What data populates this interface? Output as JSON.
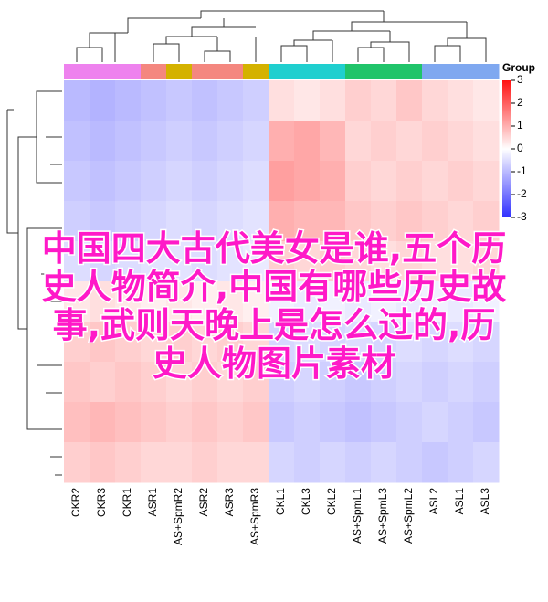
{
  "chart_data": {
    "type": "heatmap",
    "columns": [
      "CKR2",
      "CKR3",
      "CKR1",
      "ASR1",
      "AS+SpmR2",
      "ASR2",
      "ASR3",
      "AS+SpmR3",
      "CKL1",
      "CKL3",
      "CKL2",
      "AS+SpmL1",
      "AS+SpmL3",
      "AS+SpmL2",
      "ASL2",
      "ASL1",
      "ASL3"
    ],
    "column_group_colors": [
      "#ee82ee",
      "#ee82ee",
      "#ee82ee",
      "#f4877f",
      "#d4b200",
      "#f4877f",
      "#f4877f",
      "#d4b200",
      "#1fcfcf",
      "#1fcfcf",
      "#1fcfcf",
      "#20c46a",
      "#20c46a",
      "#20c46a",
      "#7fa8f0",
      "#7fa8f0",
      "#7fa8f0"
    ],
    "legend_title": "Group",
    "matrix": [
      [
        -1.0,
        -1.1,
        -1.0,
        -0.9,
        -0.8,
        -0.9,
        -0.8,
        -0.7,
        0.4,
        0.3,
        0.4,
        0.6,
        0.5,
        0.7,
        0.5,
        0.4,
        0.3
      ],
      [
        -0.9,
        -1.0,
        -0.9,
        -0.8,
        -0.7,
        -0.8,
        -0.7,
        -0.6,
        1.0,
        1.1,
        0.9,
        0.5,
        0.6,
        0.5,
        0.6,
        0.5,
        0.4
      ],
      [
        -0.8,
        -0.9,
        -0.8,
        -0.7,
        -0.6,
        -0.7,
        -0.6,
        -0.5,
        1.2,
        1.1,
        1.0,
        0.6,
        0.5,
        0.6,
        0.5,
        0.6,
        0.5
      ],
      [
        -0.7,
        -0.8,
        -0.7,
        -0.6,
        -0.5,
        -0.6,
        -0.5,
        -0.4,
        1.0,
        0.9,
        0.9,
        0.7,
        0.6,
        0.7,
        0.6,
        0.5,
        0.6
      ],
      [
        -0.5,
        -0.6,
        -0.5,
        -0.4,
        -0.4,
        -0.5,
        -0.4,
        -0.3,
        0.6,
        0.5,
        0.6,
        0.5,
        0.4,
        0.5,
        0.4,
        0.4,
        0.5
      ],
      [
        0.3,
        0.4,
        0.3,
        0.2,
        0.3,
        0.2,
        0.3,
        0.2,
        -0.2,
        -0.3,
        -0.2,
        -0.3,
        -0.2,
        -0.3,
        -0.2,
        -0.3,
        -0.2
      ],
      [
        0.6,
        0.7,
        0.6,
        0.5,
        0.6,
        0.5,
        0.6,
        0.5,
        -0.6,
        -0.5,
        -0.6,
        -0.5,
        -0.6,
        -0.5,
        -0.6,
        -0.5,
        -0.6
      ],
      [
        0.7,
        0.6,
        0.7,
        0.6,
        0.5,
        0.6,
        0.5,
        0.6,
        -0.7,
        -0.6,
        -0.7,
        -0.8,
        -0.7,
        -0.6,
        -0.7,
        -0.6,
        -0.7
      ],
      [
        0.8,
        0.9,
        0.8,
        0.7,
        0.6,
        0.7,
        0.6,
        0.7,
        -0.8,
        -0.7,
        -0.8,
        -0.9,
        -0.8,
        -0.7,
        -0.6,
        -0.7,
        -0.8
      ],
      [
        0.6,
        0.7,
        0.6,
        0.5,
        0.5,
        0.6,
        0.5,
        0.5,
        -0.6,
        -0.7,
        -0.6,
        -0.7,
        -0.6,
        -0.7,
        -0.8,
        -0.7,
        -0.6
      ]
    ],
    "colors": [
      "#3030ff",
      "#ffffff",
      "#ff1010"
    ],
    "clim": [
      -3,
      3
    ],
    "cticks": [
      3,
      2,
      1,
      0,
      -1,
      -2,
      -3
    ],
    "overlay_lines": [
      "中国四大古代美女是谁,五个历",
      "史人物简介,中国有哪些历史故",
      "事,武则天晚上是怎么过的,历",
      "史人物图片素材"
    ]
  }
}
